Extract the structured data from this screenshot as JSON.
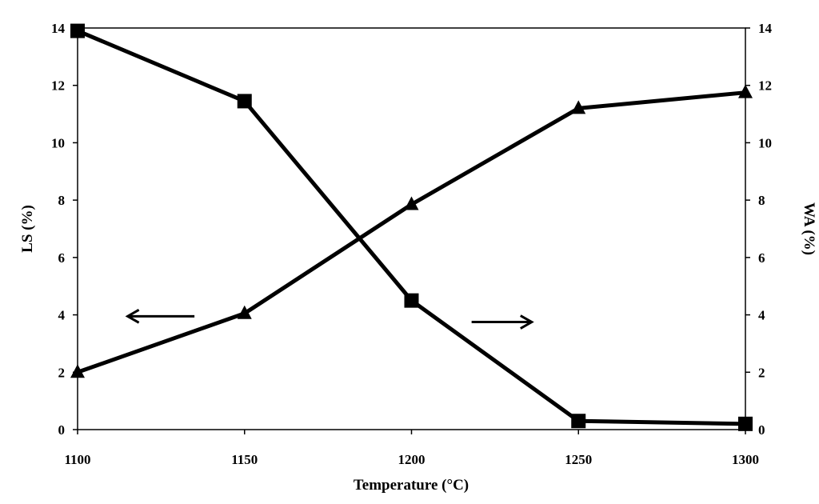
{
  "chart_data": {
    "type": "line",
    "xlabel": "Temperature (°C)",
    "ylabel_left": "LS (%)",
    "ylabel_right": "WA (%)",
    "x": [
      1100,
      1150,
      1200,
      1250,
      1300
    ],
    "xlim": [
      1100,
      1300
    ],
    "ylim": [
      0,
      14
    ],
    "x_ticks": [
      "1100",
      "1150",
      "1200",
      "1250",
      "1300"
    ],
    "y_ticks": [
      "0",
      "2",
      "4",
      "6",
      "8",
      "10",
      "12",
      "14"
    ],
    "grid": false,
    "series": [
      {
        "marker": "triangle",
        "axis": "left",
        "values": [
          2.0,
          4.05,
          7.85,
          11.2,
          11.75
        ]
      },
      {
        "marker": "square",
        "axis": "right",
        "values": [
          13.9,
          11.45,
          4.5,
          0.3,
          0.2
        ]
      }
    ],
    "annotations": [
      {
        "type": "arrow",
        "direction": "left",
        "points_to_axis": "left",
        "x_from": 1135,
        "x_to": 1115,
        "y": 3.95
      },
      {
        "type": "arrow",
        "direction": "right",
        "points_to_axis": "right",
        "x_from": 1218,
        "x_to": 1236,
        "y": 3.75
      }
    ],
    "colors": {
      "line": "#000000",
      "marker": "#000000"
    }
  }
}
